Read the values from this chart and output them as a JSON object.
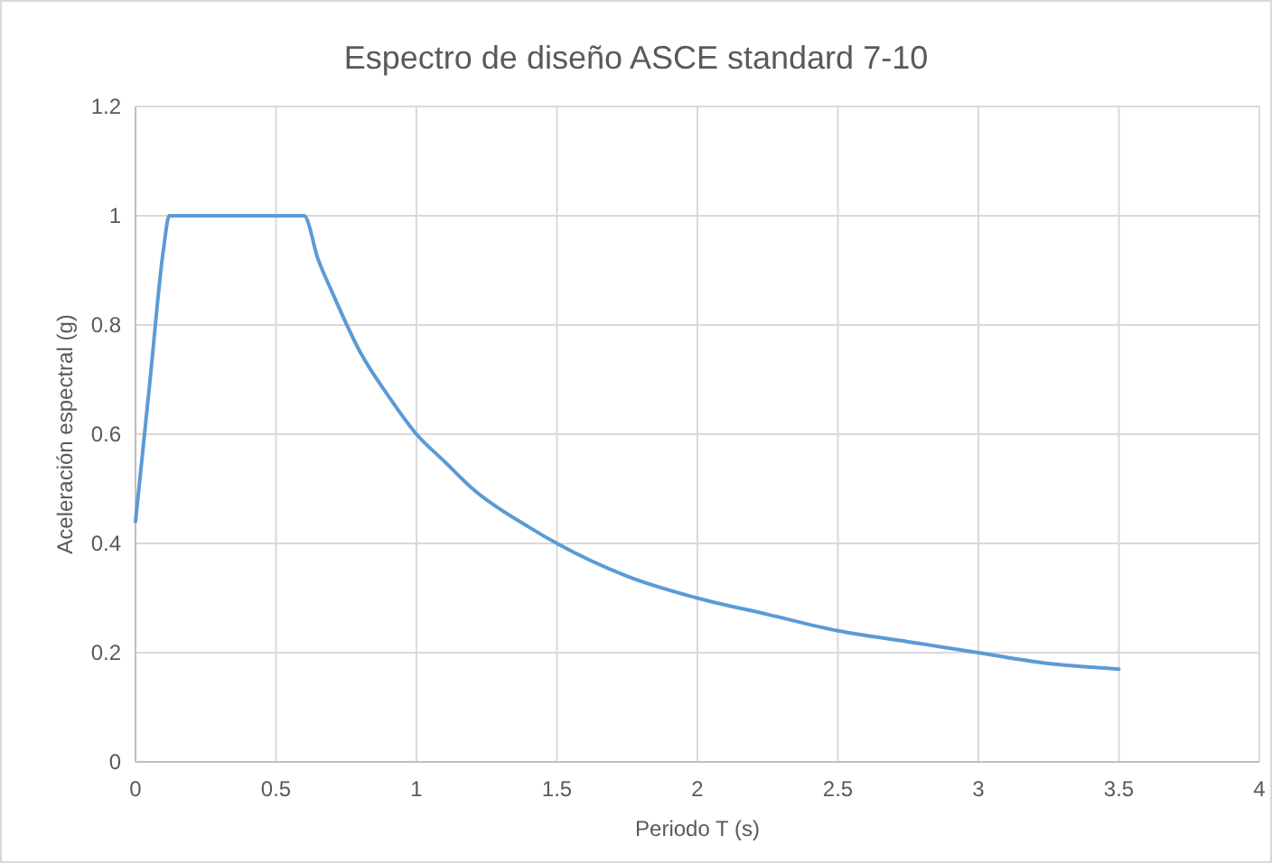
{
  "chart_data": {
    "type": "line",
    "title": "Espectro de diseño ASCE standard 7-10",
    "xlabel": "Periodo T (s)",
    "ylabel": "Aceleración espectral (g)",
    "x": [
      0,
      0.05,
      0.1,
      0.12,
      0.6,
      0.65,
      0.7,
      0.8,
      0.9,
      1,
      1.1,
      1.2,
      1.4,
      1.5,
      1.75,
      2,
      2.25,
      2.5,
      2.75,
      3,
      3.25,
      3.5
    ],
    "series": [
      {
        "color": "#5b9bd5",
        "values": [
          0.44,
          0.69,
          0.94,
          1,
          1,
          0.92,
          0.86,
          0.75,
          0.67,
          0.6,
          0.55,
          0.5,
          0.43,
          0.4,
          0.34,
          0.3,
          0.27,
          0.24,
          0.22,
          0.2,
          0.18,
          0.17
        ]
      }
    ],
    "xlim": [
      0,
      4
    ],
    "xticks": [
      0,
      0.5,
      1,
      1.5,
      2,
      2.5,
      3,
      3.5,
      4
    ],
    "ylim": [
      0,
      1.2
    ],
    "yticks": [
      0,
      0.2,
      0.4,
      0.6,
      0.8,
      1,
      1.2
    ],
    "grid": true,
    "marker": "none",
    "line_style": "solid"
  }
}
